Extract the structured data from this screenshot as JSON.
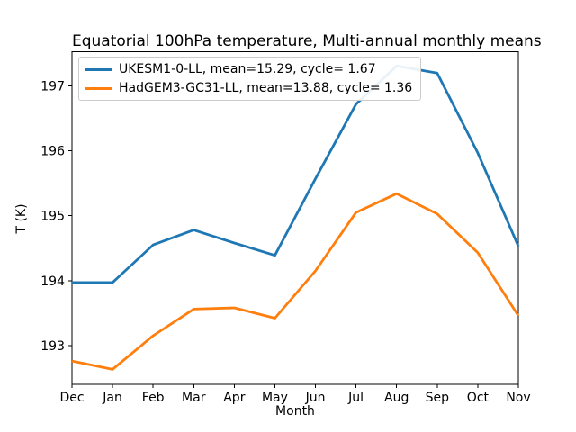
{
  "title": "Equatorial 100hPa temperature, Multi-annual monthly means",
  "chart_data": {
    "type": "line",
    "title": "Equatorial 100hPa temperature, Multi-annual monthly means",
    "xlabel": "Month",
    "ylabel": "T (K)",
    "categories": [
      "Dec",
      "Jan",
      "Feb",
      "Mar",
      "Apr",
      "May",
      "Jun",
      "Jul",
      "Aug",
      "Sep",
      "Oct",
      "Nov"
    ],
    "yticks": [
      193,
      194,
      195,
      196,
      197
    ],
    "ylim": [
      192.4,
      197.53
    ],
    "grid": false,
    "legend_position": "upper-left",
    "series": [
      {
        "name": "UKESM1-0-LL",
        "legend_label": "UKESM1-0-LL, mean=15.29, cycle= 1.67",
        "mean": "15.29",
        "cycle": "1.67",
        "color": "#1f77b4",
        "values": [
          193.97,
          193.97,
          194.55,
          194.78,
          194.58,
          194.39,
          195.57,
          196.72,
          197.31,
          197.2,
          195.97,
          194.53
        ]
      },
      {
        "name": "HadGEM3-GC31-LL",
        "legend_label": "HadGEM3-GC31-LL, mean=13.88, cycle= 1.36",
        "mean": "13.88",
        "cycle": "1.36",
        "color": "#ff7f0e",
        "values": [
          192.76,
          192.63,
          193.15,
          193.56,
          193.58,
          193.42,
          194.15,
          195.05,
          195.34,
          195.03,
          194.43,
          193.46
        ]
      }
    ]
  }
}
